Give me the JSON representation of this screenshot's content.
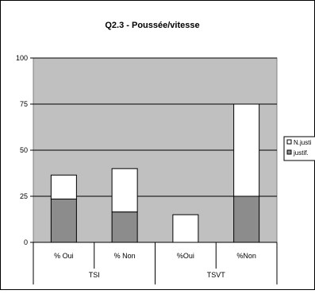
{
  "chart_data": {
    "type": "bar",
    "stacked": true,
    "title": "Q2.3 - Poussée/vitesse",
    "categories": [
      "% Oui",
      "% Non",
      "%Oui",
      "%Non"
    ],
    "groups": [
      {
        "label": "TSI",
        "categories": [
          "% Oui",
          "% Non"
        ]
      },
      {
        "label": "TSVT",
        "categories": [
          "%Oui",
          "%Non"
        ]
      }
    ],
    "series": [
      {
        "name": "justif.",
        "values": [
          23.5,
          16.5,
          0,
          25
        ],
        "color": "#8c8c8c"
      },
      {
        "name": "N.justi",
        "values": [
          13,
          23.5,
          15,
          50
        ],
        "color": "#ffffff"
      }
    ],
    "yticks": [
      "0",
      "25",
      "50",
      "75",
      "100"
    ],
    "ylim": [
      0,
      100
    ],
    "grid": true,
    "legend": "right",
    "plot_background": "#c0c0c0"
  }
}
